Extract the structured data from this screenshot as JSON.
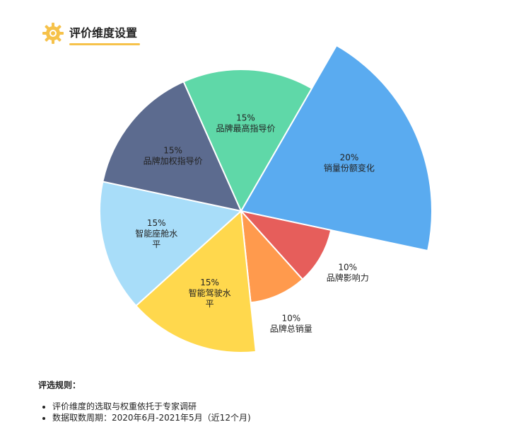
{
  "header": {
    "title": "评价维度设置",
    "icon": "gear-icon",
    "accent_color": "#f6c24a"
  },
  "chart_data": {
    "type": "pie",
    "subtype": "nightingale-rose",
    "start_angle_deg": -60,
    "slices": [
      {
        "label": "销量份额变化",
        "percent_label": "20%",
        "value": 20,
        "color": "#5aabf0",
        "label_inside": true
      },
      {
        "label": "品牌影响力",
        "percent_label": "10%",
        "value": 10,
        "color": "#e65e5b",
        "label_inside": false
      },
      {
        "label": "品牌总销量",
        "percent_label": "10%",
        "value": 10,
        "color": "#ff9a4d",
        "label_inside": false
      },
      {
        "label": "智能驾驶水平",
        "percent_label": "15%",
        "value": 15,
        "color": "#ffd84d",
        "label_inside": true
      },
      {
        "label": "智能座舱水平",
        "percent_label": "15%",
        "value": 15,
        "color": "#a8ddf9",
        "label_inside": true
      },
      {
        "label": "品牌加权指导价",
        "percent_label": "15%",
        "value": 15,
        "color": "#5c6b8f",
        "label_inside": true
      },
      {
        "label": "品牌最高指导价",
        "percent_label": "15%",
        "value": 15,
        "color": "#5fd8a8",
        "label_inside": true
      }
    ]
  },
  "rules": {
    "heading": "评选规则：",
    "items": [
      "评价维度的选取与权重依托于专家调研",
      "数据取数周期：2020年6月-2021年5月（近12个月)"
    ]
  }
}
